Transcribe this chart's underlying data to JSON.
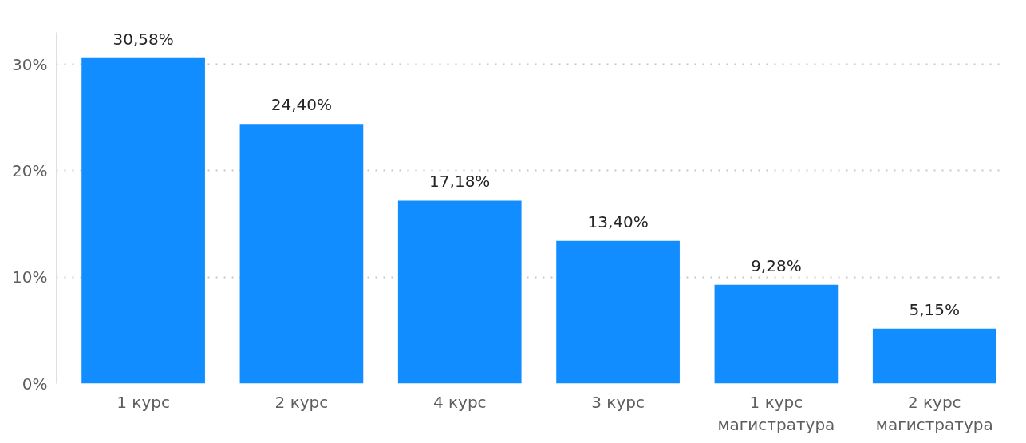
{
  "chart_data": {
    "type": "bar",
    "categories": [
      "1 курс",
      "2 курс",
      "4 курс",
      "3 курс",
      "1 курс\nмагистратура",
      "2 курс\nмагистратура"
    ],
    "values": [
      30.58,
      24.4,
      17.18,
      13.4,
      9.28,
      5.15
    ],
    "value_labels": [
      "30,58%",
      "24,40%",
      "17,18%",
      "13,40%",
      "9,28%",
      "5,15%"
    ],
    "color": "#118dff",
    "yticks": [
      {
        "value": 0,
        "label": "0%"
      },
      {
        "value": 10,
        "label": "10%"
      },
      {
        "value": 20,
        "label": "20%"
      },
      {
        "value": 30,
        "label": "30%"
      }
    ],
    "ylim": [
      0,
      33
    ],
    "grid": "y"
  }
}
